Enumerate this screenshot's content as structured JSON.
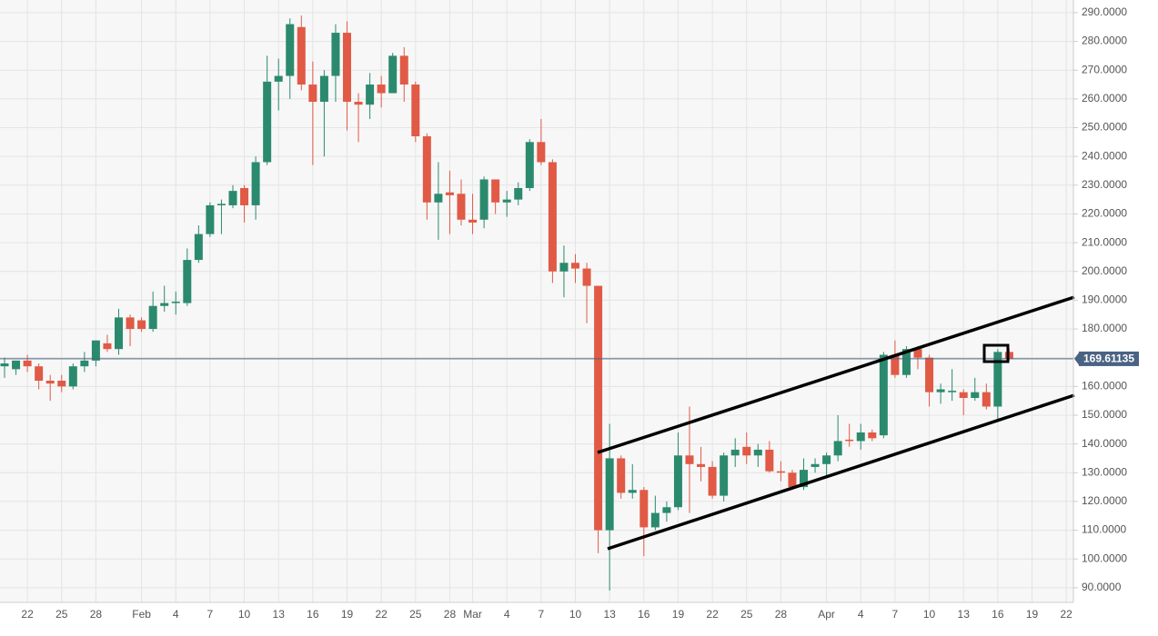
{
  "chart_data": {
    "type": "candlestick",
    "categories": [
      null,
      null,
      "22",
      null,
      null,
      "25",
      null,
      null,
      "28",
      null,
      null,
      null,
      "Feb",
      null,
      null,
      "4",
      null,
      null,
      "7",
      null,
      null,
      "10",
      null,
      null,
      "13",
      null,
      null,
      "16",
      null,
      null,
      "19",
      null,
      null,
      "22",
      null,
      null,
      "25",
      null,
      null,
      "28",
      null,
      "Mar",
      null,
      null,
      "4",
      null,
      null,
      "7",
      null,
      null,
      "10",
      null,
      null,
      "13",
      null,
      null,
      "16",
      null,
      null,
      "19",
      null,
      null,
      "22",
      null,
      null,
      "25",
      null,
      null,
      "28",
      null,
      null,
      null,
      "Apr",
      null,
      null,
      "4",
      null,
      null,
      "7",
      null,
      null,
      "10",
      null,
      null,
      "13",
      null,
      null,
      "16",
      null,
      null,
      "19",
      null,
      null,
      "22"
    ],
    "open": [
      167,
      166,
      169,
      167,
      162,
      162,
      160,
      167,
      169,
      175,
      173,
      184,
      183,
      180,
      188,
      189,
      189,
      204,
      213,
      223,
      223,
      229,
      223,
      238,
      266,
      268,
      285,
      265,
      259,
      268,
      283,
      259,
      258,
      265,
      262,
      275,
      265,
      247,
      224,
      227.5,
      227,
      218,
      218,
      232,
      224,
      225,
      229,
      245,
      238,
      200,
      203,
      201,
      195,
      110,
      135,
      123,
      124,
      111,
      116,
      118,
      136,
      133,
      132,
      122,
      136,
      139,
      136,
      138,
      130.5,
      130,
      125,
      132,
      133,
      136,
      141.5,
      141,
      144,
      143,
      171,
      164,
      173,
      170,
      158,
      158,
      158,
      156,
      158,
      153,
      172,
      null,
      null,
      null,
      null,
      null
    ],
    "high": [
      170,
      169,
      171,
      168,
      164,
      164,
      168,
      172,
      176,
      178,
      187,
      185,
      184,
      193,
      195,
      193,
      208,
      216,
      224,
      225,
      230,
      230,
      240,
      275,
      274,
      288,
      289,
      273,
      270,
      286,
      287,
      262,
      269,
      268,
      276,
      278,
      266,
      248,
      238,
      235,
      232,
      227,
      233,
      232,
      228,
      231,
      246,
      253,
      239,
      209,
      206,
      203,
      195,
      147,
      136,
      133,
      125,
      122,
      120,
      144,
      153,
      139,
      134,
      137,
      142,
      144,
      140,
      141,
      134,
      131,
      135,
      135,
      137,
      150,
      147,
      147,
      145,
      172,
      176,
      174,
      174,
      171,
      161,
      166,
      159,
      163,
      161,
      173,
      173,
      null,
      null,
      null,
      null,
      null
    ],
    "low": [
      163,
      164,
      165,
      159,
      155,
      158,
      159,
      165,
      167,
      172,
      171,
      174,
      179,
      179,
      186,
      185,
      188,
      203,
      212,
      213,
      222,
      217,
      218,
      237,
      256,
      260,
      263,
      237,
      240,
      259,
      249,
      245,
      253,
      257,
      262,
      259,
      245,
      218,
      211,
      213,
      216,
      213,
      215,
      220,
      219,
      223,
      228,
      237,
      196,
      191,
      196,
      182,
      102,
      89,
      121,
      121,
      101,
      110,
      113,
      117,
      116,
      127,
      121,
      120,
      132,
      133,
      132,
      130,
      127,
      124,
      124,
      130,
      128,
      134,
      139,
      138,
      141,
      142,
      163,
      163,
      166,
      153,
      154,
      155,
      150,
      155,
      152,
      148,
      169,
      null,
      null,
      null,
      null,
      null
    ],
    "close": [
      168,
      169,
      167,
      162,
      161,
      160,
      167,
      169,
      176,
      173,
      184,
      180,
      180,
      188,
      189,
      189.5,
      204,
      213,
      223,
      223.5,
      228,
      223,
      238,
      266,
      268,
      286,
      265,
      259,
      268,
      283,
      259,
      258,
      265,
      262,
      275,
      265,
      247,
      224,
      227,
      226.5,
      218,
      217,
      232,
      224,
      225,
      229,
      245,
      238,
      200,
      203,
      201,
      195,
      110,
      135,
      123,
      124,
      111,
      116,
      118,
      136,
      133,
      132,
      122,
      136,
      138,
      136,
      138,
      130.5,
      130,
      125,
      131,
      133,
      136,
      141,
      141,
      144,
      142,
      171,
      164,
      173,
      170,
      158,
      159,
      158.5,
      156,
      158,
      153,
      172,
      169.6,
      null,
      null,
      null,
      null,
      null
    ],
    "up_color": "#2b8a6e",
    "down_color": "#e05a46",
    "last_price": {
      "value": 169.61135,
      "label": "169.61135"
    },
    "ylim": [
      84.9,
      294.4
    ],
    "yticks": [
      {
        "value": 90,
        "label": "90.0000"
      },
      {
        "value": 100,
        "label": "100.0000"
      },
      {
        "value": 110,
        "label": "110.0000"
      },
      {
        "value": 120,
        "label": "120.0000"
      },
      {
        "value": 130,
        "label": "130.0000"
      },
      {
        "value": 140,
        "label": "140.0000"
      },
      {
        "value": 150,
        "label": "150.0000"
      },
      {
        "value": 160,
        "label": "160.0000"
      },
      {
        "value": 170,
        "label": "170.0000"
      },
      {
        "value": 180,
        "label": "180.0000"
      },
      {
        "value": 190,
        "label": "190.0000"
      },
      {
        "value": 200,
        "label": "200.0000"
      },
      {
        "value": 210,
        "label": "210.0000"
      },
      {
        "value": 220,
        "label": "220.0000"
      },
      {
        "value": 230,
        "label": "230.0000"
      },
      {
        "value": 240,
        "label": "240.0000"
      },
      {
        "value": 250,
        "label": "250.0000"
      },
      {
        "value": 260,
        "label": "260.0000"
      },
      {
        "value": 270,
        "label": "270.0000"
      },
      {
        "value": 280,
        "label": "280.0000"
      },
      {
        "value": 290,
        "label": "290.0000"
      }
    ],
    "grid": true
  }
}
